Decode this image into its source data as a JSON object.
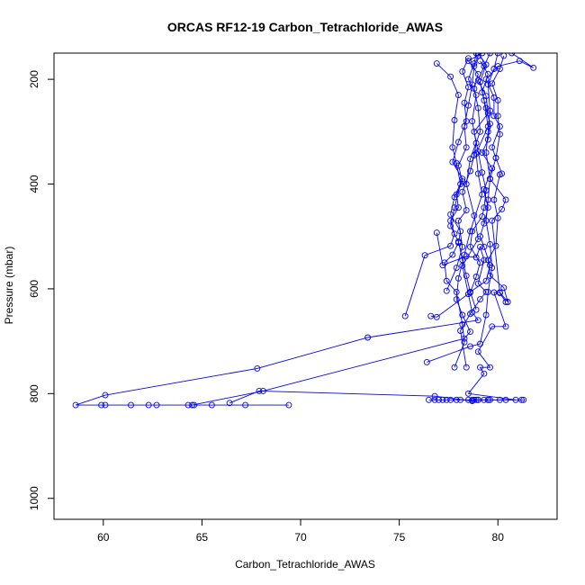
{
  "chart_data": {
    "type": "line",
    "title": "ORCAS RF12-19 Carbon_Tetrachloride_AWAS",
    "xlabel": "Carbon_Tetrachloride_AWAS",
    "ylabel": "Pressure (mbar)",
    "xlim": [
      57.5,
      83
    ],
    "ylim": [
      1040,
      150
    ],
    "y_reversed": true,
    "x_ticks": [
      60,
      65,
      70,
      75,
      80
    ],
    "y_ticks": [
      200,
      400,
      600,
      800,
      1000
    ],
    "grid": false,
    "legend": "none",
    "series_color": "#0000ff",
    "series": [
      {
        "points": [
          [
            69.4,
            822
          ],
          [
            67.2,
            822
          ],
          [
            65.5,
            822
          ],
          [
            64.6,
            822
          ],
          [
            64.3,
            822
          ],
          [
            62.7,
            822
          ],
          [
            62.3,
            822
          ],
          [
            61.4,
            822
          ],
          [
            60.1,
            822
          ],
          [
            59.9,
            822
          ],
          [
            58.6,
            822
          ],
          [
            60.1,
            803
          ],
          [
            67.8,
            752
          ],
          [
            73.4,
            693
          ],
          [
            79.0,
            660
          ],
          [
            78.7,
            645
          ],
          [
            78.5,
            610
          ],
          [
            78.2,
            556
          ],
          [
            79.0,
            505
          ],
          [
            78.8,
            460
          ],
          [
            78.4,
            400
          ],
          [
            78.6,
            352
          ],
          [
            79.1,
            300
          ],
          [
            79.0,
            255
          ],
          [
            78.8,
            218
          ],
          [
            79.0,
            190
          ],
          [
            78.5,
            165
          ],
          [
            79.2,
            150
          ]
        ]
      },
      {
        "points": [
          [
            66.4,
            818
          ],
          [
            67.9,
            795
          ],
          [
            76.8,
            805
          ],
          [
            78.7,
            814
          ],
          [
            79.0,
            812
          ],
          [
            79.5,
            812
          ],
          [
            80.4,
            812
          ],
          [
            81.2,
            812
          ],
          [
            81.3,
            812
          ]
        ]
      },
      {
        "points": [
          [
            64.5,
            822
          ],
          [
            68.1,
            795
          ],
          [
            78.3,
            695
          ],
          [
            78.6,
            682
          ],
          [
            78.2,
            650
          ],
          [
            77.9,
            620
          ],
          [
            78.0,
            580
          ],
          [
            78.3,
            535
          ],
          [
            78.6,
            490
          ],
          [
            79.2,
            420
          ],
          [
            79.0,
            380
          ],
          [
            78.9,
            342
          ],
          [
            79.5,
            290
          ],
          [
            79.3,
            240
          ],
          [
            79.1,
            205
          ],
          [
            79.4,
            172
          ],
          [
            79.0,
            150
          ]
        ]
      },
      {
        "points": [
          [
            76.4,
            740
          ],
          [
            78.6,
            710
          ],
          [
            79.1,
            705
          ],
          [
            79.4,
            650
          ],
          [
            79.5,
            606
          ],
          [
            79.7,
            560
          ],
          [
            79.6,
            515
          ],
          [
            79.4,
            470
          ],
          [
            79.5,
            430
          ],
          [
            79.6,
            390
          ],
          [
            79.4,
            340
          ],
          [
            79.5,
            300
          ],
          [
            79.6,
            260
          ],
          [
            79.5,
            210
          ],
          [
            79.8,
            180
          ],
          [
            80.0,
            150
          ]
        ]
      },
      {
        "points": [
          [
            75.3,
            652
          ],
          [
            76.3,
            536
          ],
          [
            77.6,
            518
          ],
          [
            77.8,
            495
          ],
          [
            77.6,
            470
          ],
          [
            78.0,
            445
          ],
          [
            77.9,
            420
          ],
          [
            78.2,
            395
          ],
          [
            78.0,
            365
          ],
          [
            78.4,
            330
          ],
          [
            78.3,
            290
          ],
          [
            78.5,
            250
          ],
          [
            78.7,
            210
          ],
          [
            78.8,
            175
          ],
          [
            79.0,
            155
          ]
        ]
      },
      {
        "points": [
          [
            76.6,
            652
          ],
          [
            76.9,
            654
          ],
          [
            78.6,
            607
          ],
          [
            78.9,
            577
          ],
          [
            79.1,
            550
          ],
          [
            78.6,
            520
          ],
          [
            78.7,
            490
          ],
          [
            79.2,
            462
          ],
          [
            79.3,
            445
          ],
          [
            79.4,
            412
          ],
          [
            79.2,
            378
          ],
          [
            79.0,
            338
          ],
          [
            78.8,
            300
          ],
          [
            79.5,
            265
          ],
          [
            79.4,
            232
          ],
          [
            79.0,
            202
          ],
          [
            79.3,
            175
          ],
          [
            79.6,
            150
          ]
        ]
      },
      {
        "points": [
          [
            76.5,
            812
          ],
          [
            76.8,
            812
          ],
          [
            77.0,
            812
          ],
          [
            77.2,
            812
          ],
          [
            77.4,
            812
          ],
          [
            77.6,
            812
          ],
          [
            77.9,
            812
          ],
          [
            78.1,
            812
          ],
          [
            78.5,
            812
          ],
          [
            78.7,
            812
          ],
          [
            78.8,
            812
          ],
          [
            78.9,
            812
          ],
          [
            79.0,
            812
          ],
          [
            79.3,
            812
          ],
          [
            79.5,
            812
          ],
          [
            79.6,
            812
          ],
          [
            80.1,
            812
          ],
          [
            80.9,
            812
          ],
          [
            78.5,
            800
          ],
          [
            79.3,
            762
          ],
          [
            79.1,
            750
          ],
          [
            79.6,
            750
          ],
          [
            79.0,
            720
          ],
          [
            79.7,
            672
          ],
          [
            80.4,
            672
          ],
          [
            79.8,
            607
          ],
          [
            80.1,
            607
          ],
          [
            80.5,
            625
          ],
          [
            80.3,
            598
          ],
          [
            79.6,
            575
          ],
          [
            79.5,
            545
          ],
          [
            79.9,
            518
          ],
          [
            80.0,
            465
          ],
          [
            79.8,
            430
          ],
          [
            80.1,
            382
          ],
          [
            80.2,
            380
          ],
          [
            79.9,
            350
          ],
          [
            80.1,
            305
          ],
          [
            80.0,
            270
          ],
          [
            80.0,
            240
          ],
          [
            79.7,
            208
          ],
          [
            80.1,
            180
          ],
          [
            80.3,
            155
          ]
        ]
      },
      {
        "points": [
          [
            77.8,
            750
          ],
          [
            78.3,
            702
          ],
          [
            78.2,
            668
          ],
          [
            77.9,
            606
          ],
          [
            77.4,
            585
          ],
          [
            77.3,
            550
          ],
          [
            77.7,
            535
          ],
          [
            78.0,
            512
          ],
          [
            78.1,
            490
          ],
          [
            77.6,
            458
          ],
          [
            77.8,
            425
          ],
          [
            78.2,
            390
          ],
          [
            77.7,
            358
          ],
          [
            78.0,
            320
          ],
          [
            78.4,
            280
          ],
          [
            78.3,
            245
          ],
          [
            78.5,
            215
          ],
          [
            78.2,
            185
          ],
          [
            78.5,
            160
          ]
        ]
      },
      {
        "points": [
          [
            76.9,
            493
          ],
          [
            77.2,
            555
          ],
          [
            78.4,
            538
          ],
          [
            78.9,
            540
          ],
          [
            79.1,
            520
          ],
          [
            79.3,
            545
          ],
          [
            79.0,
            590
          ],
          [
            79.4,
            606
          ],
          [
            79.1,
            620
          ],
          [
            78.6,
            648
          ],
          [
            78.1,
            680
          ],
          [
            78.4,
            750
          ]
        ]
      },
      {
        "points": [
          [
            77.4,
            604
          ],
          [
            77.9,
            560
          ],
          [
            78.2,
            520
          ],
          [
            78.0,
            470
          ],
          [
            78.4,
            450
          ],
          [
            78.2,
            415
          ],
          [
            78.6,
            375
          ],
          [
            78.8,
            345
          ],
          [
            78.9,
            322
          ],
          [
            78.7,
            280
          ],
          [
            78.9,
            230
          ],
          [
            78.5,
            200
          ],
          [
            78.8,
            170
          ],
          [
            78.9,
            150
          ]
        ]
      },
      {
        "points": [
          [
            80.4,
            625
          ],
          [
            80.1,
            608
          ],
          [
            79.7,
            470
          ],
          [
            80.2,
            448
          ],
          [
            80.4,
            430
          ],
          [
            79.6,
            390
          ],
          [
            79.9,
            350
          ],
          [
            79.7,
            330
          ],
          [
            80.1,
            290
          ],
          [
            79.8,
            270
          ],
          [
            79.8,
            235
          ],
          [
            79.4,
            200
          ],
          [
            80.0,
            175
          ],
          [
            81.1,
            165
          ],
          [
            81.8,
            178
          ],
          [
            80.7,
            150
          ]
        ]
      },
      {
        "points": [
          [
            76.9,
            170
          ],
          [
            77.6,
            195
          ],
          [
            78.0,
            230
          ],
          [
            77.8,
            278
          ],
          [
            77.7,
            330
          ],
          [
            77.9,
            360
          ],
          [
            78.1,
            400
          ],
          [
            77.8,
            445
          ],
          [
            77.6,
            480
          ],
          [
            78.0,
            510
          ],
          [
            78.2,
            545
          ],
          [
            78.4,
            575
          ],
          [
            78.6,
            606
          ],
          [
            78.9,
            640
          ]
        ]
      },
      {
        "points": [
          [
            78.6,
            606
          ],
          [
            79.4,
            585
          ],
          [
            79.6,
            555
          ],
          [
            79.3,
            520
          ],
          [
            79.1,
            500
          ],
          [
            79.3,
            475
          ],
          [
            79.5,
            445
          ],
          [
            79.3,
            410
          ],
          [
            79.7,
            370
          ],
          [
            79.2,
            340
          ],
          [
            79.5,
            315
          ],
          [
            79.6,
            285
          ],
          [
            79.4,
            255
          ],
          [
            79.2,
            225
          ],
          [
            79.5,
            190
          ],
          [
            79.1,
            165
          ]
        ]
      }
    ]
  }
}
